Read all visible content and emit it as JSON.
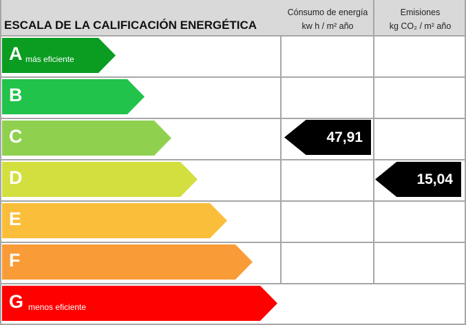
{
  "header": {
    "title": "ESCALA DE LA CALIFICACIÓN ENERGÉTICA",
    "col1": {
      "line1": "Cónsumo de energía",
      "line2": "kw h / m² año"
    },
    "col2": {
      "line1": "Emisiones",
      "line2": "kg CO₂ / m² año"
    }
  },
  "chart_data": {
    "type": "table",
    "title": "ESCALA DE LA CALIFICACIÓN ENERGÉTICA",
    "classes": [
      {
        "letter": "A",
        "label": "más eficiente",
        "color": "#0b9c22"
      },
      {
        "letter": "B",
        "label": "",
        "color": "#21c34a"
      },
      {
        "letter": "C",
        "label": "",
        "color": "#8fd14f"
      },
      {
        "letter": "D",
        "label": "",
        "color": "#d3df3f"
      },
      {
        "letter": "E",
        "label": "",
        "color": "#fbbe3b"
      },
      {
        "letter": "F",
        "label": "",
        "color": "#f99c37"
      },
      {
        "letter": "G",
        "label": "menos eficiente",
        "color": "#ff0000"
      }
    ],
    "energy_consumption": {
      "class": "C",
      "value": "47,91"
    },
    "emissions": {
      "class": "D",
      "value": "15,04"
    }
  }
}
